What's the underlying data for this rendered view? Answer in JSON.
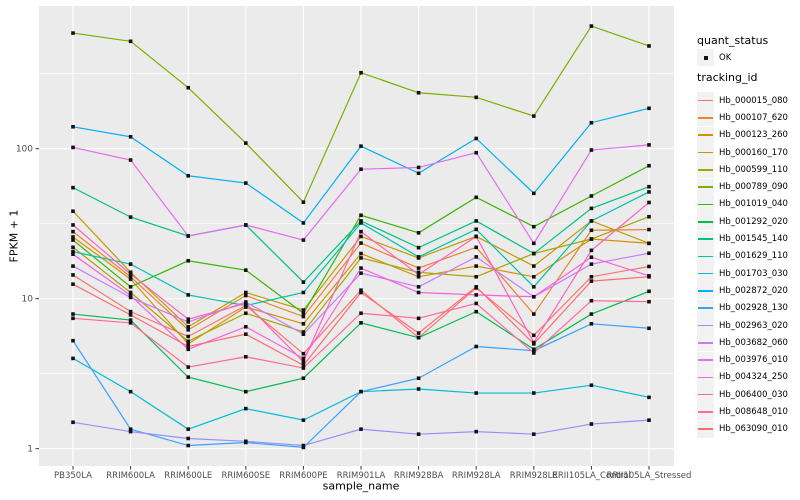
{
  "axes": {
    "x_title": "sample_name",
    "y_title": "FPKM + 1",
    "y_tick_labels": [
      "1",
      "10",
      "100"
    ]
  },
  "legend": {
    "quant_status_title": "quant_status",
    "quant_status_items": [
      {
        "label": "OK",
        "marker": "black-square-icon"
      }
    ],
    "tracking_id_title": "tracking_id"
  },
  "colors": {
    "page_bg": "#FFFFFF",
    "panel_bg": "#EBEBEB",
    "grid": "#FFFFFF",
    "tick_mark": "#333333",
    "tick_text": "#4D4D4D",
    "axis_text": "#000000",
    "legend_key_bg": "#F2F2F2",
    "marker": "#111111"
  },
  "chart_data": {
    "type": "line",
    "title": "",
    "xlabel": "sample_name",
    "ylabel": "FPKM + 1",
    "y_scale": "log10",
    "ylim": [
      1,
      700
    ],
    "y_ticks": [
      1,
      10,
      100
    ],
    "y_minor_ticks": [
      3.162,
      31.62,
      316.2
    ],
    "grid": true,
    "legend_position": "right",
    "marker": "square",
    "categories": [
      "PB350LA",
      "RRIM600LA",
      "RRIM600LE",
      "RRIM600SE",
      "RRIM600PE",
      "RRIM901LA",
      "RRIM928BA",
      "RRIM928LA",
      "RRIM928LE",
      "RRII105LA_Control",
      "RRII105LA_Stressed"
    ],
    "series": [
      {
        "name": "Hb_000015_080",
        "color": "#F8766D",
        "values": [
          14.4,
          8.2,
          5.6,
          9.0,
          4.3,
          11.4,
          5.5,
          11.8,
          5.7,
          14.0,
          16.4
        ]
      },
      {
        "name": "Hb_000107_620",
        "color": "#EA8331",
        "values": [
          28.0,
          14.0,
          6.2,
          10.5,
          7.6,
          23.5,
          16.0,
          22.0,
          7.9,
          28.6,
          28.9
        ]
      },
      {
        "name": "Hb_000123_260",
        "color": "#D89000",
        "values": [
          25.8,
          13.5,
          5.0,
          8.8,
          6.8,
          20.0,
          14.0,
          16.5,
          14.0,
          25.0,
          23.4
        ]
      },
      {
        "name": "Hb_000160_170",
        "color": "#C09B00",
        "values": [
          38.3,
          15.0,
          6.5,
          11.0,
          8.4,
          26.0,
          18.7,
          26.0,
          16.5,
          33.0,
          23.4
        ]
      },
      {
        "name": "Hb_000599_110",
        "color": "#A3A500",
        "values": [
          22.0,
          11.0,
          5.2,
          8.0,
          6.0,
          18.7,
          15.0,
          14.0,
          20.0,
          25.0,
          35.2
        ]
      },
      {
        "name": "Hb_000789_090",
        "color": "#7CAE00",
        "values": [
          590,
          520,
          255,
          109,
          44,
          321,
          236,
          220,
          165,
          657,
          484
        ]
      },
      {
        "name": "Hb_001019_040",
        "color": "#39B600",
        "values": [
          24.6,
          12.0,
          17.9,
          15.5,
          8.0,
          36.0,
          27.5,
          47.4,
          30.2,
          48.4,
          77.0
        ]
      },
      {
        "name": "Hb_001292_020",
        "color": "#00BB4E",
        "values": [
          7.9,
          7.2,
          3.0,
          2.4,
          2.95,
          6.9,
          5.5,
          8.2,
          4.6,
          7.9,
          11.2
        ]
      },
      {
        "name": "Hb_001545_140",
        "color": "#00C087",
        "values": [
          55.0,
          35.0,
          26.2,
          31.0,
          12.9,
          33.0,
          21.9,
          33.0,
          20.0,
          40.0,
          55.8
        ]
      },
      {
        "name": "Hb_001629_110",
        "color": "#00C0AF",
        "values": [
          20.6,
          17.0,
          10.6,
          9.0,
          11.0,
          32.0,
          19.0,
          29.0,
          12.0,
          33.0,
          51.5
        ]
      },
      {
        "name": "Hb_001703_030",
        "color": "#00BCD8",
        "values": [
          4.0,
          2.4,
          1.35,
          1.85,
          1.55,
          2.4,
          2.5,
          2.35,
          2.35,
          2.65,
          2.2
        ]
      },
      {
        "name": "Hb_002872_020",
        "color": "#00B0F6",
        "values": [
          140,
          120,
          66,
          59,
          32,
          104,
          68.6,
          117,
          50.4,
          149,
          186
        ]
      },
      {
        "name": "Hb_002928_130",
        "color": "#35A2FF",
        "values": [
          5.25,
          1.35,
          1.05,
          1.1,
          1.02,
          2.4,
          2.95,
          4.8,
          4.5,
          6.8,
          6.35
        ]
      },
      {
        "name": "Hb_002963_020",
        "color": "#9590FF",
        "values": [
          1.5,
          1.3,
          1.17,
          1.12,
          1.05,
          1.35,
          1.25,
          1.3,
          1.25,
          1.46,
          1.55
        ]
      },
      {
        "name": "Hb_003682_060",
        "color": "#C77CFF",
        "values": [
          16.5,
          10.2,
          7.0,
          9.5,
          5.8,
          14.8,
          12.0,
          19.0,
          10.3,
          17.0,
          20.1
        ]
      },
      {
        "name": "Hb_003976_010",
        "color": "#E76BF3",
        "values": [
          102,
          84,
          26.2,
          31.0,
          24.6,
          73.0,
          75.0,
          94.0,
          23.4,
          98.0,
          106
        ]
      },
      {
        "name": "Hb_004324_250",
        "color": "#FA62DB",
        "values": [
          19.8,
          10.5,
          4.6,
          6.5,
          4.0,
          16.0,
          11.0,
          10.6,
          10.3,
          18.9,
          14.2
        ]
      },
      {
        "name": "Hb_006400_030",
        "color": "#FF62BC",
        "values": [
          31.0,
          14.6,
          7.3,
          9.3,
          3.8,
          28.0,
          14.5,
          26.0,
          5.1,
          21.0,
          43.8
        ]
      },
      {
        "name": "Hb_008648_010",
        "color": "#FF6A98",
        "values": [
          7.4,
          6.9,
          3.5,
          4.1,
          3.45,
          8.0,
          7.4,
          9.3,
          4.35,
          9.7,
          9.55
        ]
      },
      {
        "name": "Hb_063090_010",
        "color": "#FF6C72",
        "values": [
          12.5,
          7.8,
          4.8,
          5.8,
          3.6,
          11.0,
          5.9,
          12.0,
          5.0,
          13.1,
          14.0
        ]
      }
    ]
  }
}
